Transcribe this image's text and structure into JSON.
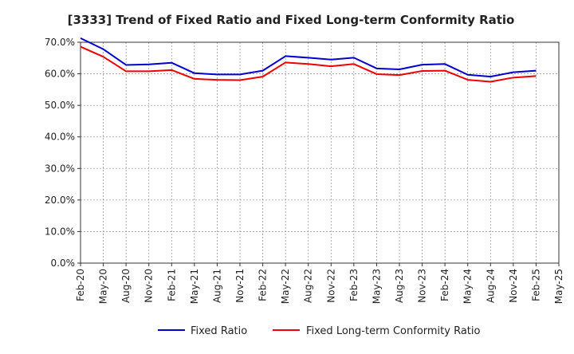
{
  "chart_data": {
    "type": "line",
    "title": "[3333]  Trend of Fixed Ratio and Fixed Long-term Conformity Ratio",
    "xlabel": "",
    "ylabel": "",
    "ylim": [
      0,
      70
    ],
    "yticks": [
      "0.0%",
      "10.0%",
      "20.0%",
      "30.0%",
      "40.0%",
      "50.0%",
      "60.0%",
      "70.0%"
    ],
    "ytick_values": [
      0,
      10,
      20,
      30,
      40,
      50,
      60,
      70
    ],
    "x_tick_labels": [
      "Feb-20",
      "May-20",
      "Aug-20",
      "Nov-20",
      "Feb-21",
      "May-21",
      "Aug-21",
      "Nov-21",
      "Feb-22",
      "May-22",
      "Aug-22",
      "Nov-22",
      "Feb-23",
      "May-23",
      "Aug-23",
      "Nov-23",
      "Feb-24",
      "May-24",
      "Aug-24",
      "Nov-24",
      "Feb-25",
      "May-25"
    ],
    "categories": [
      "Feb-20",
      "May-20",
      "Aug-20",
      "Nov-20",
      "Feb-21",
      "May-21",
      "Aug-21",
      "Nov-21",
      "Feb-22",
      "May-22",
      "Aug-22",
      "Nov-22",
      "Feb-23",
      "May-23",
      "Aug-23",
      "Nov-23",
      "Feb-24",
      "May-24",
      "Aug-24",
      "Nov-24",
      "Feb-25"
    ],
    "grid": true,
    "legend_position": "bottom-center",
    "series": [
      {
        "name": "Fixed Ratio",
        "color": "#0000cc",
        "values": [
          71.3,
          67.8,
          62.8,
          63.0,
          63.5,
          60.2,
          59.8,
          59.8,
          61.0,
          65.6,
          65.1,
          64.5,
          65.1,
          61.7,
          61.4,
          62.9,
          63.1,
          59.7,
          59.1,
          60.5,
          61.0
        ]
      },
      {
        "name": "Fixed Long-term Conformity Ratio",
        "color": "#ee0000",
        "values": [
          68.6,
          65.4,
          60.8,
          60.8,
          61.2,
          58.4,
          58.1,
          58.0,
          59.1,
          63.6,
          63.1,
          62.4,
          63.1,
          59.9,
          59.6,
          60.9,
          61.0,
          58.1,
          57.5,
          58.8,
          59.3
        ]
      }
    ]
  }
}
